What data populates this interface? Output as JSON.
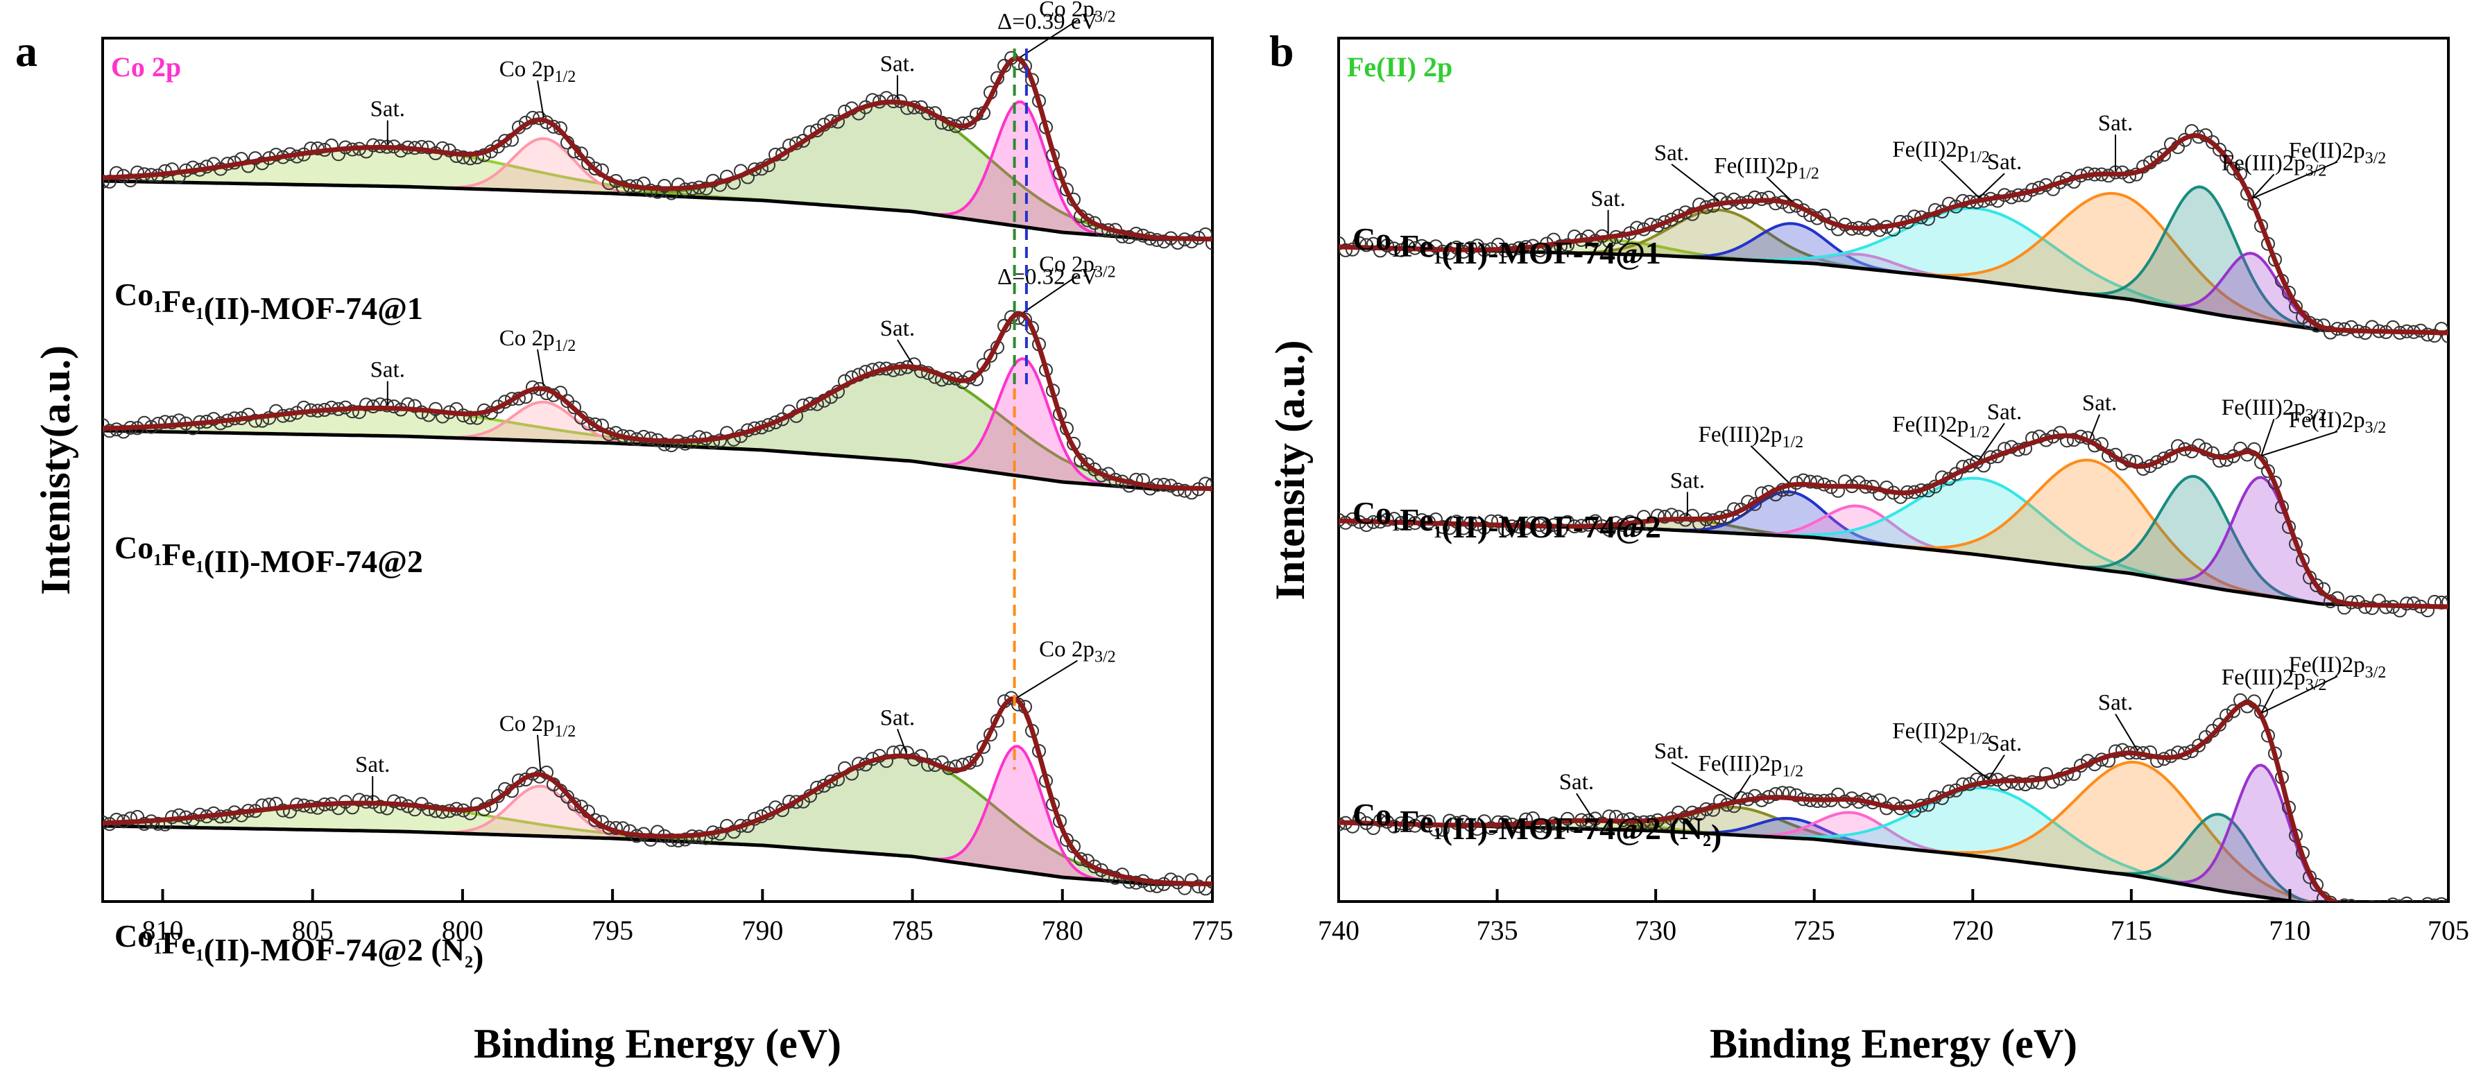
{
  "chart_data": [
    {
      "type": "line",
      "panel_label": "a",
      "title": "Co 2p",
      "title_color": "#ff33cc",
      "xlabel": "Binding Energy (eV)",
      "ylabel": "Intenisty(a.u.)",
      "xlim": [
        812,
        775
      ],
      "xticks": [
        810,
        805,
        800,
        795,
        790,
        785,
        780,
        775
      ],
      "y_unit": "arbitrary (stacked, offset spectra)",
      "dashed_markers": [
        {
          "energy": 781.6,
          "color": "#2e8b2e"
        },
        {
          "energy": 781.2,
          "color": "#2233cc"
        },
        {
          "energy": 781.6,
          "color": "#ff8c1a"
        }
      ],
      "spectra": [
        {
          "sample_name": "Co",
          "sample_sub1": "1",
          "sample_mid": "Fe",
          "sample_sub2": "1",
          "sample_rest": "(II)-MOF-74@1",
          "offset": 2.6,
          "background": [
            [
              812,
              0.42
            ],
            [
              802,
              0.38
            ],
            [
              795,
              0.33
            ],
            [
              790,
              0.28
            ],
            [
              785,
              0.2
            ],
            [
              780,
              0.05
            ],
            [
              777,
              0.0
            ],
            [
              775,
              0.0
            ]
          ],
          "peaks": [
            {
              "label": "Sat.",
              "center": 802.5,
              "height": 0.28,
              "fwhm": 10,
              "color": "#9acd32"
            },
            {
              "label": "Co 2p1/2",
              "center": 797.3,
              "height": 0.38,
              "fwhm": 2.4,
              "color": "#ff99aa"
            },
            {
              "label": "Sat.",
              "center": 785.5,
              "height": 0.78,
              "fwhm": 7.0,
              "color": "#6aaa22"
            },
            {
              "label": "Co 2p3/2",
              "center": 781.4,
              "height": 0.9,
              "fwhm": 2.0,
              "color": "#ff33cc"
            }
          ],
          "annotations": [
            {
              "text": "Sat.",
              "x": 802.5
            },
            {
              "text": "Co 2p",
              "sub": "1/2",
              "x": 797.5
            },
            {
              "text": "Sat.",
              "x": 785.5
            },
            {
              "text": "Co 2p",
              "sub": "3/2",
              "x": 779.5
            },
            {
              "text": "Δ=0.39 eV",
              "x": 780.5
            }
          ]
        },
        {
          "sample_name": "Co",
          "sample_sub1": "1",
          "sample_mid": "Fe",
          "sample_sub2": "1",
          "sample_rest": "(II)-MOF-74@2",
          "offset": 1.3,
          "background": [
            [
              812,
              0.42
            ],
            [
              802,
              0.38
            ],
            [
              795,
              0.33
            ],
            [
              790,
              0.28
            ],
            [
              785,
              0.2
            ],
            [
              780,
              0.05
            ],
            [
              777,
              0.0
            ],
            [
              775,
              0.0
            ]
          ],
          "peaks": [
            {
              "label": "Sat.",
              "center": 802.5,
              "height": 0.2,
              "fwhm": 10,
              "color": "#9acd32"
            },
            {
              "label": "Co 2p1/2",
              "center": 797.3,
              "height": 0.28,
              "fwhm": 2.4,
              "color": "#ff99aa"
            },
            {
              "label": "Sat.",
              "center": 785.0,
              "height": 0.68,
              "fwhm": 7.0,
              "color": "#6aaa22"
            },
            {
              "label": "Co 2p3/2",
              "center": 781.3,
              "height": 0.85,
              "fwhm": 2.0,
              "color": "#ff33cc"
            }
          ],
          "annotations": [
            {
              "text": "Sat.",
              "x": 802.5
            },
            {
              "text": "Co 2p",
              "sub": "1/2",
              "x": 797.5
            },
            {
              "text": "Sat.",
              "x": 785.5
            },
            {
              "text": "Co 2p",
              "sub": "3/2",
              "x": 779.5
            },
            {
              "text": "Δ=0.32 eV",
              "x": 780.5
            }
          ]
        },
        {
          "sample_name": "Co",
          "sample_sub1": "1",
          "sample_mid": "Fe",
          "sample_sub2": "1",
          "sample_rest": "(II)-MOF-74@2 (N",
          "sample_sub3": "2",
          "sample_tail": ")",
          "offset": 0.0,
          "background": [
            [
              812,
              0.42
            ],
            [
              802,
              0.38
            ],
            [
              795,
              0.33
            ],
            [
              790,
              0.28
            ],
            [
              785,
              0.2
            ],
            [
              780,
              0.05
            ],
            [
              777,
              0.0
            ],
            [
              775,
              0.0
            ]
          ],
          "peaks": [
            {
              "label": "Sat.",
              "center": 803.0,
              "height": 0.2,
              "fwhm": 10,
              "color": "#9acd32"
            },
            {
              "label": "Co 2p1/2",
              "center": 797.4,
              "height": 0.36,
              "fwhm": 2.4,
              "color": "#ff99aa"
            },
            {
              "label": "Sat.",
              "center": 785.2,
              "height": 0.72,
              "fwhm": 7.0,
              "color": "#6aaa22"
            },
            {
              "label": "Co 2p3/2",
              "center": 781.5,
              "height": 0.9,
              "fwhm": 2.0,
              "color": "#ff33cc"
            }
          ],
          "annotations": [
            {
              "text": "Sat.",
              "x": 803.0
            },
            {
              "text": "Co 2p",
              "sub": "1/2",
              "x": 797.5
            },
            {
              "text": "Sat.",
              "x": 785.5
            },
            {
              "text": "Co 2p",
              "sub": "3/2",
              "x": 779.5
            }
          ]
        }
      ]
    },
    {
      "type": "line",
      "panel_label": "b",
      "title": "Fe(II) 2p",
      "title_color": "#33cc33",
      "xlabel": "Binding Energy (eV)",
      "ylabel": "Intensity (a.u.)",
      "xlim": [
        740,
        705
      ],
      "xticks": [
        740,
        735,
        730,
        725,
        720,
        715,
        710,
        705
      ],
      "y_unit": "arbitrary (stacked, offset spectra)",
      "spectra": [
        {
          "sample_name": "Co",
          "sample_sub1": "1",
          "sample_mid": "Fe",
          "sample_sub2": "1",
          "sample_rest": "(II)-MOF-74@1",
          "offset": 2.55,
          "background": [
            [
              740,
              0.62
            ],
            [
              730,
              0.56
            ],
            [
              725,
              0.5
            ],
            [
              720,
              0.38
            ],
            [
              715,
              0.24
            ],
            [
              712,
              0.12
            ],
            [
              709,
              0.02
            ],
            [
              705,
              0.0
            ]
          ],
          "peaks": [
            {
              "label": "Sat.",
              "center": 731.5,
              "height": 0.1,
              "fwhm": 4.0,
              "color": "#9acd32"
            },
            {
              "label": "Sat.",
              "center": 728.0,
              "height": 0.35,
              "fwhm": 3.5,
              "color": "#8b8b22"
            },
            {
              "label": "Fe(III)2p1/2",
              "center": 725.7,
              "height": 0.28,
              "fwhm": 2.6,
              "color": "#2233cc"
            },
            {
              "label": "Fe(II)2p1/2",
              "center": 723.5,
              "height": 0.1,
              "fwhm": 2.5,
              "color": "#ff66cc"
            },
            {
              "label": "Sat.",
              "center": 719.8,
              "height": 0.52,
              "fwhm": 5.5,
              "color": "#33e6e6"
            },
            {
              "label": "Sat.",
              "center": 715.5,
              "height": 0.75,
              "fwhm": 4.5,
              "color": "#ff8c1a"
            },
            {
              "label": "Fe(III)2p3/2",
              "center": 712.8,
              "height": 0.9,
              "fwhm": 2.6,
              "color": "#1a8b80"
            },
            {
              "label": "Fe(II)2p3/2",
              "center": 711.2,
              "height": 0.48,
              "fwhm": 2.0,
              "color": "#9933cc"
            }
          ],
          "annotations": [
            {
              "text": "Sat.",
              "x": 731.5
            },
            {
              "text": "Sat.",
              "x": 729.5
            },
            {
              "text": "Fe(III)2p",
              "sub": "1/2",
              "x": 726.5
            },
            {
              "text": "Fe(II)2p",
              "sub": "1/2",
              "x": 721.0
            },
            {
              "text": "Sat.",
              "x": 719.0
            },
            {
              "text": "Sat.",
              "x": 715.5
            },
            {
              "text": "Fe(III)2p",
              "sub": "3/2",
              "x": 710.5
            },
            {
              "text": "Fe(II)2p",
              "sub": "3/2",
              "x": 708.5
            }
          ]
        },
        {
          "sample_name": "Co",
          "sample_sub1": "1",
          "sample_mid": "Fe",
          "sample_sub2": "1",
          "sample_rest": "(II)-MOF-74@2",
          "offset": 1.25,
          "background": [
            [
              740,
              0.62
            ],
            [
              730,
              0.56
            ],
            [
              725,
              0.5
            ],
            [
              720,
              0.38
            ],
            [
              715,
              0.24
            ],
            [
              712,
              0.12
            ],
            [
              709,
              0.02
            ],
            [
              705,
              0.0
            ]
          ],
          "peaks": [
            {
              "label": "Sat.",
              "center": 729.0,
              "height": 0.08,
              "fwhm": 3.5,
              "color": "#8b8b22"
            },
            {
              "label": "Fe(III)2p1/2",
              "center": 725.8,
              "height": 0.32,
              "fwhm": 2.6,
              "color": "#2233cc"
            },
            {
              "label": "Fe(II)2p1/2",
              "center": 723.6,
              "height": 0.26,
              "fwhm": 2.5,
              "color": "#ff66cc"
            },
            {
              "label": "Sat.",
              "center": 719.8,
              "height": 0.55,
              "fwhm": 4.8,
              "color": "#33e6e6"
            },
            {
              "label": "Sat.",
              "center": 716.3,
              "height": 0.78,
              "fwhm": 4.2,
              "color": "#ff8c1a"
            },
            {
              "label": "Fe(III)2p3/2",
              "center": 713.0,
              "height": 0.78,
              "fwhm": 2.6,
              "color": "#1a8b80"
            },
            {
              "label": "Fe(II)2p3/2",
              "center": 710.9,
              "height": 0.85,
              "fwhm": 2.1,
              "color": "#9933cc"
            }
          ],
          "annotations": [
            {
              "text": "Sat.",
              "x": 729.0
            },
            {
              "text": "Fe(III)2p",
              "sub": "1/2",
              "x": 727.0
            },
            {
              "text": "Fe(II)2p",
              "sub": "1/2",
              "x": 721.0
            },
            {
              "text": "Sat.",
              "x": 719.0
            },
            {
              "text": "Sat.",
              "x": 716.0
            },
            {
              "text": "Fe(III)2p",
              "sub": "3/2",
              "x": 710.5
            },
            {
              "text": "Fe(II)2p",
              "sub": "3/2",
              "x": 708.5
            }
          ]
        },
        {
          "sample_name": "Co",
          "sample_sub1": "1",
          "sample_mid": "Fe",
          "sample_sub2": "1",
          "sample_rest": "(II)-MOF-74@2 (N",
          "sample_sub3": "2",
          "sample_tail": ")",
          "offset": 0.0,
          "background": [
            [
              740,
              0.62
            ],
            [
              730,
              0.56
            ],
            [
              725,
              0.5
            ],
            [
              720,
              0.38
            ],
            [
              715,
              0.24
            ],
            [
              712,
              0.12
            ],
            [
              709,
              0.02
            ],
            [
              705,
              0.0
            ]
          ],
          "peaks": [
            {
              "label": "Sat.",
              "center": 732.0,
              "height": 0.06,
              "fwhm": 4.0,
              "color": "#9acd32"
            },
            {
              "label": "Sat.",
              "center": 727.5,
              "height": 0.2,
              "fwhm": 3.5,
              "color": "#8b8b22"
            },
            {
              "label": "Fe(III)2p1/2",
              "center": 725.8,
              "height": 0.14,
              "fwhm": 2.4,
              "color": "#2233cc"
            },
            {
              "label": "Fe(II)2p1/2",
              "center": 723.8,
              "height": 0.22,
              "fwhm": 2.5,
              "color": "#ff66cc"
            },
            {
              "label": "Sat.",
              "center": 719.5,
              "height": 0.5,
              "fwhm": 5.0,
              "color": "#33e6e6"
            },
            {
              "label": "Sat.",
              "center": 714.8,
              "height": 0.82,
              "fwhm": 4.6,
              "color": "#ff8c1a"
            },
            {
              "label": "Fe(III)2p3/2",
              "center": 712.2,
              "height": 0.55,
              "fwhm": 2.4,
              "color": "#1a8b80"
            },
            {
              "label": "Fe(II)2p3/2",
              "center": 710.9,
              "height": 0.95,
              "fwhm": 2.0,
              "color": "#9933cc"
            }
          ],
          "annotations": [
            {
              "text": "Sat.",
              "x": 732.5
            },
            {
              "text": "Sat.",
              "x": 729.5
            },
            {
              "text": "Fe(III)2p",
              "sub": "1/2",
              "x": 727.0
            },
            {
              "text": "Fe(II)2p",
              "sub": "1/2",
              "x": 721.0
            },
            {
              "text": "Sat.",
              "x": 719.0
            },
            {
              "text": "Sat.",
              "x": 715.5
            },
            {
              "text": "Fe(III)2p",
              "sub": "3/2",
              "x": 710.5
            },
            {
              "text": "Fe(II)2p",
              "sub": "3/2",
              "x": 708.5
            }
          ]
        }
      ]
    }
  ]
}
